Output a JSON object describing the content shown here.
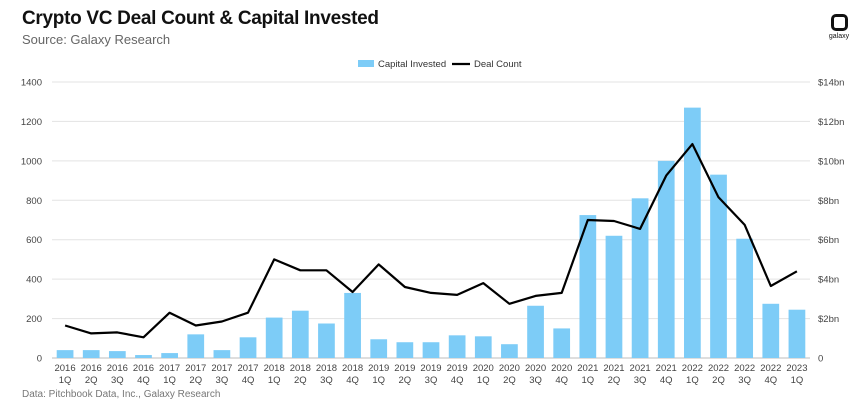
{
  "header": {
    "title": "Crypto VC Deal Count & Capital Invested",
    "subtitle": "Source: Galaxy Research",
    "logo_text": "galaxy"
  },
  "footer": {
    "note": "Data: Pitchbook Data, Inc., Galaxy Research"
  },
  "colors": {
    "bar": "#7dccf7",
    "line": "#000000",
    "grid": "#e3e3e3"
  },
  "chart_data": {
    "type": "bar+line",
    "categories": [
      [
        "2016",
        "1Q"
      ],
      [
        "2016",
        "2Q"
      ],
      [
        "2016",
        "3Q"
      ],
      [
        "2016",
        "4Q"
      ],
      [
        "2017",
        "1Q"
      ],
      [
        "2017",
        "2Q"
      ],
      [
        "2017",
        "3Q"
      ],
      [
        "2017",
        "4Q"
      ],
      [
        "2018",
        "1Q"
      ],
      [
        "2018",
        "2Q"
      ],
      [
        "2018",
        "3Q"
      ],
      [
        "2018",
        "4Q"
      ],
      [
        "2019",
        "1Q"
      ],
      [
        "2019",
        "2Q"
      ],
      [
        "2019",
        "3Q"
      ],
      [
        "2019",
        "4Q"
      ],
      [
        "2020",
        "1Q"
      ],
      [
        "2020",
        "2Q"
      ],
      [
        "2020",
        "3Q"
      ],
      [
        "2020",
        "4Q"
      ],
      [
        "2021",
        "1Q"
      ],
      [
        "2021",
        "2Q"
      ],
      [
        "2021",
        "3Q"
      ],
      [
        "2021",
        "4Q"
      ],
      [
        "2022",
        "1Q"
      ],
      [
        "2022",
        "2Q"
      ],
      [
        "2022",
        "3Q"
      ],
      [
        "2022",
        "4Q"
      ],
      [
        "2023",
        "1Q"
      ]
    ],
    "series": [
      {
        "name": "Capital Invested",
        "kind": "bar",
        "axis": "right",
        "unit": "$bn",
        "values": [
          0.4,
          0.4,
          0.35,
          0.15,
          0.25,
          1.2,
          0.4,
          1.05,
          2.05,
          2.4,
          1.75,
          3.3,
          0.95,
          0.8,
          0.8,
          1.15,
          1.1,
          0.7,
          2.65,
          1.5,
          7.25,
          6.2,
          8.1,
          10.0,
          12.7,
          9.3,
          6.05,
          2.75,
          2.45
        ]
      },
      {
        "name": "Deal Count",
        "kind": "line",
        "axis": "left",
        "values": [
          165,
          125,
          130,
          105,
          230,
          165,
          185,
          230,
          500,
          445,
          445,
          335,
          475,
          360,
          330,
          320,
          380,
          275,
          315,
          330,
          700,
          695,
          655,
          925,
          1085,
          815,
          675,
          365,
          440
        ]
      }
    ],
    "left_axis": {
      "min": 0,
      "max": 1400,
      "ticks": [
        "0",
        "200",
        "400",
        "600",
        "800",
        "1000",
        "1200",
        "1400"
      ]
    },
    "right_axis": {
      "min": 0,
      "max": 14,
      "ticks": [
        "0",
        "$2bn",
        "$4bn",
        "$6bn",
        "$8bn",
        "$10bn",
        "$12bn",
        "$14bn"
      ]
    },
    "grid": true,
    "legend_position": "top-center"
  }
}
